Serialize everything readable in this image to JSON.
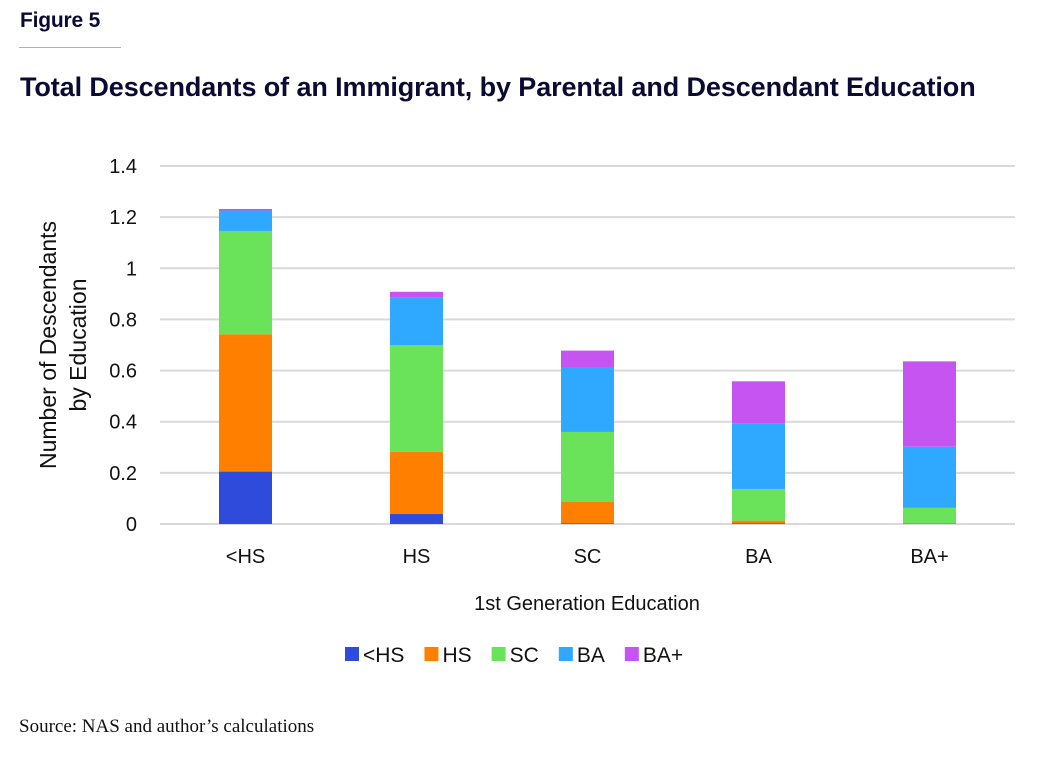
{
  "figure_label": "Figure 5",
  "source": "Source: NAS and author’s calculations",
  "chart_data": {
    "type": "bar",
    "stacked": true,
    "title": "Total Descendants of an Immigrant, by Parental and Descendant Education",
    "xlabel": "1st Generation Education",
    "ylabel_lines": [
      "Number of Descendants",
      "by Education"
    ],
    "ylabel": "Number of Descendants by Education",
    "categories": [
      "<HS",
      "HS",
      "SC",
      "BA",
      "BA+"
    ],
    "ylim": [
      0,
      1.4
    ],
    "yticks": [
      0,
      0.2,
      0.4,
      0.6,
      0.8,
      1,
      1.2,
      1.4
    ],
    "ytick_labels": [
      "0",
      "0.2",
      "0.4",
      "0.6",
      "0.8",
      "1",
      "1.2",
      "1.4"
    ],
    "grid": true,
    "legend_position": "bottom",
    "series": [
      {
        "name": "<HS",
        "color": "#2e4bdb",
        "values": [
          0.205,
          0.039,
          0.003,
          0.002,
          0.001
        ]
      },
      {
        "name": "HS",
        "color": "#ff7f00",
        "values": [
          0.537,
          0.243,
          0.083,
          0.011,
          0.003
        ]
      },
      {
        "name": "SC",
        "color": "#6ae25a",
        "values": [
          0.404,
          0.417,
          0.274,
          0.124,
          0.059
        ]
      },
      {
        "name": "BA",
        "color": "#2fa8ff",
        "values": [
          0.08,
          0.186,
          0.254,
          0.257,
          0.239
        ]
      },
      {
        "name": "BA+",
        "color": "#c654f0",
        "values": [
          0.006,
          0.023,
          0.064,
          0.164,
          0.334
        ]
      }
    ]
  }
}
